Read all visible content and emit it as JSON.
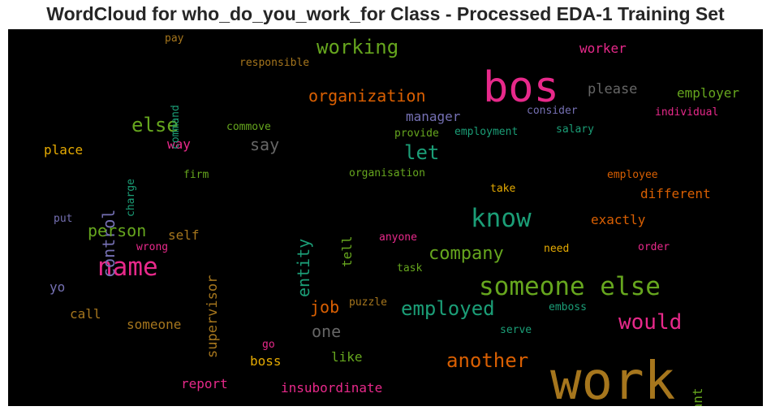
{
  "chart_data": {
    "type": "wordcloud",
    "title": "WordCloud for who_do_you_work_for Class - Processed EDA-1 Training Set",
    "background": "#000000",
    "words": [
      {
        "text": "work",
        "color": "#a6761d"
      },
      {
        "text": "bos",
        "color": "#e7298a"
      },
      {
        "text": "someone else",
        "color": "#66a61e"
      },
      {
        "text": "know",
        "color": "#1b9e77"
      },
      {
        "text": "name",
        "color": "#e7298a"
      },
      {
        "text": "would",
        "color": "#e7298a"
      },
      {
        "text": "another",
        "color": "#d95f02"
      },
      {
        "text": "employed",
        "color": "#1b9e77"
      },
      {
        "text": "company",
        "color": "#66a61e"
      },
      {
        "text": "working",
        "color": "#66a61e"
      },
      {
        "text": "organization",
        "color": "#d95f02"
      },
      {
        "text": "let",
        "color": "#1b9e77"
      },
      {
        "text": "else",
        "color": "#66a61e"
      },
      {
        "text": "control",
        "color": "#7570b3"
      },
      {
        "text": "say",
        "color": "#666666"
      },
      {
        "text": "person",
        "color": "#66a61e"
      },
      {
        "text": "entity",
        "color": "#1b9e77"
      },
      {
        "text": "job",
        "color": "#d95f02"
      },
      {
        "text": "one",
        "color": "#666666"
      },
      {
        "text": "supervisor",
        "color": "#a6761d"
      },
      {
        "text": "self",
        "color": "#a6761d"
      },
      {
        "text": "tell",
        "color": "#66a61e"
      },
      {
        "text": "please",
        "color": "#666666"
      },
      {
        "text": "employer",
        "color": "#66a61e"
      },
      {
        "text": "different",
        "color": "#d95f02"
      },
      {
        "text": "exactly",
        "color": "#d95f02"
      },
      {
        "text": "worker",
        "color": "#e7298a"
      },
      {
        "text": "manager",
        "color": "#7570b3"
      },
      {
        "text": "place",
        "color": "#e6ab02"
      },
      {
        "text": "way",
        "color": "#e7298a"
      },
      {
        "text": "call",
        "color": "#a6761d"
      },
      {
        "text": "someone",
        "color": "#a6761d"
      },
      {
        "text": "boss",
        "color": "#e6ab02"
      },
      {
        "text": "like",
        "color": "#66a61e"
      },
      {
        "text": "report",
        "color": "#e7298a"
      },
      {
        "text": "insubordinate",
        "color": "#e7298a"
      },
      {
        "text": "want",
        "color": "#66a61e"
      },
      {
        "text": "yo",
        "color": "#7570b3"
      },
      {
        "text": "responsible",
        "color": "#a6761d"
      },
      {
        "text": "pay",
        "color": "#a6761d"
      },
      {
        "text": "command",
        "color": "#1b9e77"
      },
      {
        "text": "commove",
        "color": "#66a61e"
      },
      {
        "text": "provide",
        "color": "#66a61e"
      },
      {
        "text": "employment",
        "color": "#1b9e77"
      },
      {
        "text": "salary",
        "color": "#1b9e77"
      },
      {
        "text": "consider",
        "color": "#7570b3"
      },
      {
        "text": "individual",
        "color": "#e7298a"
      },
      {
        "text": "charge",
        "color": "#1b9e77"
      },
      {
        "text": "firm",
        "color": "#66a61e"
      },
      {
        "text": "organisation",
        "color": "#66a61e"
      },
      {
        "text": "employee",
        "color": "#d95f02"
      },
      {
        "text": "take",
        "color": "#e6ab02"
      },
      {
        "text": "put",
        "color": "#7570b3"
      },
      {
        "text": "wrong",
        "color": "#e7298a"
      },
      {
        "text": "anyone",
        "color": "#e7298a"
      },
      {
        "text": "need",
        "color": "#e6ab02"
      },
      {
        "text": "order",
        "color": "#e7298a"
      },
      {
        "text": "task",
        "color": "#66a61e"
      },
      {
        "text": "puzzle",
        "color": "#a6761d"
      },
      {
        "text": "emboss",
        "color": "#1b9e77"
      },
      {
        "text": "serve",
        "color": "#1b9e77"
      },
      {
        "text": "go",
        "color": "#e7298a"
      }
    ]
  }
}
